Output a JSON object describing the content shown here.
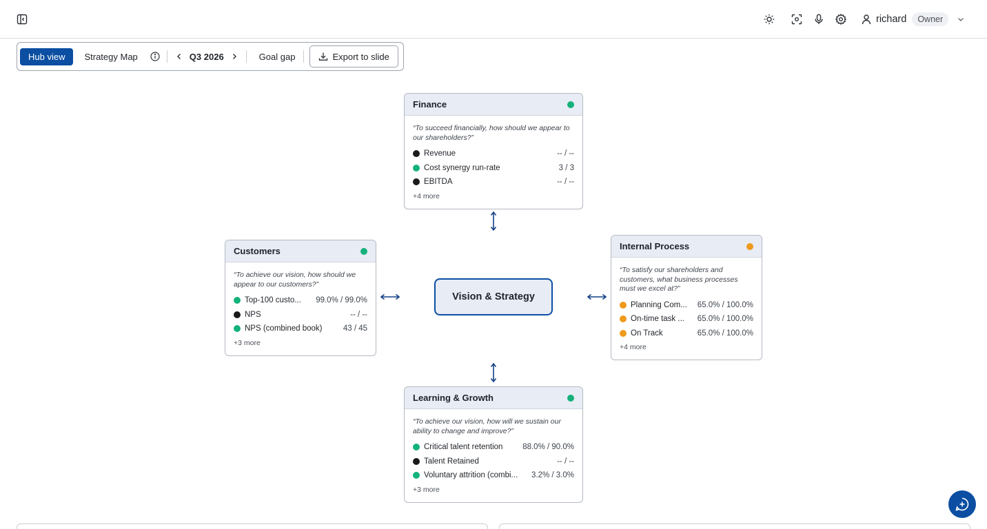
{
  "header": {
    "user_name": "richard",
    "role": "Owner",
    "icons": [
      "sidebar-toggle-icon",
      "sun-icon",
      "screen-capture-icon",
      "microphone-icon",
      "gear-icon",
      "user-icon",
      "chevron-down-icon"
    ]
  },
  "toolbar": {
    "hub_view": "Hub view",
    "strategy_map": "Strategy Map",
    "period": "Q3 2026",
    "goal_gap": "Goal gap",
    "export": "Export to slide"
  },
  "colors": {
    "accent": "#0b4ea2",
    "green": "#14b27a",
    "orange": "#ee9a1c",
    "black": "#1a1a1a"
  },
  "vision": {
    "label": "Vision & Strategy"
  },
  "cards": {
    "finance": {
      "title": "Finance",
      "status": "green",
      "question": "“To succeed financially, how should we appear to our shareholders?”",
      "kpis": [
        {
          "name": "Revenue",
          "value": "-- / --",
          "status": "black"
        },
        {
          "name": "Cost synergy run-rate",
          "value": "3 / 3",
          "status": "green"
        },
        {
          "name": "EBITDA",
          "value": "-- / --",
          "status": "black"
        }
      ],
      "more": "+4 more"
    },
    "customers": {
      "title": "Customers",
      "status": "green",
      "question": "“To achieve our vision, how should we appear to our customers?”",
      "kpis": [
        {
          "name": "Top-100 custo...",
          "value": "99.0% / 99.0%",
          "status": "green"
        },
        {
          "name": "NPS",
          "value": "-- / --",
          "status": "black"
        },
        {
          "name": "NPS (combined book)",
          "value": "43 / 45",
          "status": "green"
        }
      ],
      "more": "+3 more"
    },
    "internal": {
      "title": "Internal Process",
      "status": "orange",
      "question": "“To satisfy our shareholders and customers, what business processes must we excel at?”",
      "kpis": [
        {
          "name": "Planning Com...",
          "value": "65.0% / 100.0%",
          "status": "orange"
        },
        {
          "name": "On-time task ...",
          "value": "65.0% / 100.0%",
          "status": "orange"
        },
        {
          "name": "On Track",
          "value": "65.0% / 100.0%",
          "status": "orange"
        }
      ],
      "more": "+4 more"
    },
    "learning": {
      "title": "Learning & Growth",
      "status": "green",
      "question": "“To achieve our vision, how will we sustain our ability to change and improve?”",
      "kpis": [
        {
          "name": "Critical talent retention",
          "value": "88.0% / 90.0%",
          "status": "green"
        },
        {
          "name": "Talent Retained",
          "value": "-- / --",
          "status": "black"
        },
        {
          "name": "Voluntary attrition (combi...",
          "value": "3.2% / 3.0%",
          "status": "green"
        }
      ],
      "more": "+3 more"
    }
  }
}
